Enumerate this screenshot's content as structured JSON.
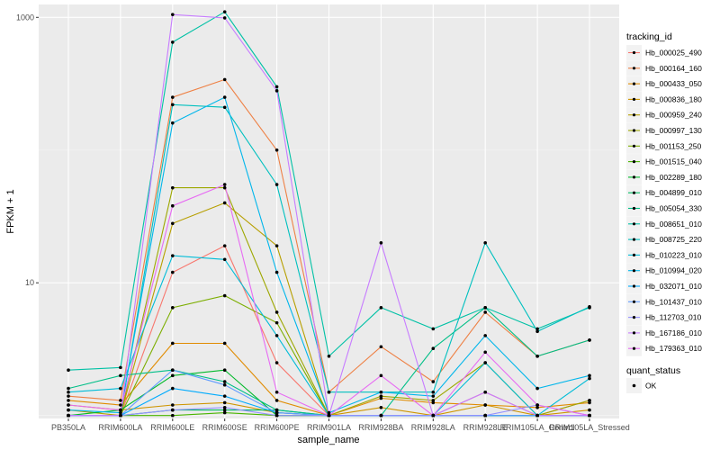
{
  "chart_data": {
    "type": "line",
    "xlabel": "sample_name",
    "ylabel": "FPKM + 1",
    "y_scale": "log10",
    "ylim": [
      0.95,
      1250
    ],
    "yticks": [
      {
        "value": 10,
        "label": "10"
      },
      {
        "value": 1000,
        "label": "1000"
      }
    ],
    "grid": true,
    "legend_position": "right",
    "categories": [
      "PB350LA",
      "RRIM600LA",
      "RRIM600LE",
      "RRIM600SE",
      "RRIM600PE",
      "RRIM901LA",
      "RRIM928BA",
      "RRIM928LA",
      "RRIM928LE",
      "RRIM105LA_Control",
      "RRIM105LA_Stressed"
    ],
    "color_legend_title": "tracking_id",
    "series": [
      {
        "name": "Hb_000025_490",
        "color": "#F8766D",
        "values": [
          1,
          1,
          12,
          19,
          2.5,
          1,
          1,
          1,
          1.5,
          1,
          1.3
        ]
      },
      {
        "name": "Hb_000164_160",
        "color": "#EE8044",
        "values": [
          1.4,
          1.3,
          250,
          340,
          100,
          1.5,
          3.3,
          1.8,
          6,
          2.8,
          3.7
        ]
      },
      {
        "name": "Hb_000433_050",
        "color": "#E08B00",
        "values": [
          1.3,
          1.2,
          3.5,
          3.5,
          1.3,
          1,
          1.35,
          1.25,
          1.2,
          1.15,
          1.25
        ]
      },
      {
        "name": "Hb_000836_180",
        "color": "#CE9500",
        "values": [
          1.2,
          1.1,
          1.2,
          1.25,
          1.05,
          1,
          1.15,
          1,
          1.2,
          1,
          1.1
        ]
      },
      {
        "name": "Hb_000959_240",
        "color": "#B79F00",
        "values": [
          1.1,
          1,
          28,
          40,
          19,
          1,
          1,
          1,
          1,
          1,
          1
        ]
      },
      {
        "name": "Hb_000997_130",
        "color": "#9DA700",
        "values": [
          1,
          1,
          52,
          52,
          6,
          1,
          1.4,
          1.3,
          2.5,
          1,
          1.3
        ]
      },
      {
        "name": "Hb_001153_250",
        "color": "#7CAE00",
        "values": [
          1,
          1,
          6.5,
          8,
          5,
          1,
          1,
          1,
          1,
          1,
          1
        ]
      },
      {
        "name": "Hb_001515_040",
        "color": "#49B500",
        "values": [
          1,
          1,
          1,
          1.05,
          1,
          1,
          1,
          1,
          1,
          1,
          1
        ]
      },
      {
        "name": "Hb_002289_180",
        "color": "#00B929",
        "values": [
          1,
          1.1,
          2,
          2.2,
          1,
          1,
          1,
          1,
          1,
          1,
          1
        ]
      },
      {
        "name": "Hb_004899_010",
        "color": "#00BC62",
        "values": [
          1,
          1,
          1.1,
          1.1,
          1.1,
          1,
          1,
          1,
          1,
          1,
          1
        ]
      },
      {
        "name": "Hb_005054_330",
        "color": "#00BF87",
        "values": [
          1.6,
          2,
          2.2,
          1.8,
          1.1,
          1,
          1,
          3.2,
          6.5,
          2.8,
          3.7
        ]
      },
      {
        "name": "Hb_008651_010",
        "color": "#00C1A5",
        "values": [
          2.2,
          2.3,
          650,
          1100,
          300,
          2.8,
          6.5,
          4.5,
          6.5,
          4.5,
          6.5
        ]
      },
      {
        "name": "Hb_008725_220",
        "color": "#00C0BF",
        "values": [
          1,
          1,
          220,
          210,
          55,
          1.5,
          1.5,
          1.5,
          20,
          4.3,
          6.6
        ]
      },
      {
        "name": "Hb_010223_010",
        "color": "#00BCD7",
        "values": [
          1.5,
          1.6,
          16,
          15,
          4,
          1,
          1,
          1,
          2.5,
          1,
          1.9
        ]
      },
      {
        "name": "Hb_010994_020",
        "color": "#00B6EB",
        "values": [
          1.1,
          1.05,
          160,
          250,
          12,
          1.05,
          1.5,
          1.4,
          4,
          1.6,
          2
        ]
      },
      {
        "name": "Hb_032071_010",
        "color": "#00ABFD",
        "values": [
          1,
          1,
          1.6,
          1.4,
          1.05,
          1,
          1,
          1,
          1,
          1,
          1
        ]
      },
      {
        "name": "Hb_101437_010",
        "color": "#619CFF",
        "values": [
          1,
          1,
          2.2,
          1.7,
          1.05,
          1,
          1,
          1,
          1,
          1,
          1
        ]
      },
      {
        "name": "Hb_112703_010",
        "color": "#9590FF",
        "values": [
          1,
          1,
          1.1,
          1.15,
          1,
          1,
          1,
          1,
          1,
          1.2,
          1
        ]
      },
      {
        "name": "Hb_167186_010",
        "color": "#C77CFF",
        "values": [
          1,
          1,
          1050,
          990,
          280,
          1,
          20,
          1,
          1.5,
          1,
          1
        ]
      },
      {
        "name": "Hb_179363_010",
        "color": "#E76BF3",
        "values": [
          1.2,
          1.1,
          38,
          55,
          1.5,
          1,
          2,
          1,
          3,
          1.2,
          1
        ]
      }
    ],
    "shape_legend": {
      "title": "quant_status",
      "items": [
        {
          "label": "OK",
          "marker": "circle"
        }
      ]
    }
  }
}
